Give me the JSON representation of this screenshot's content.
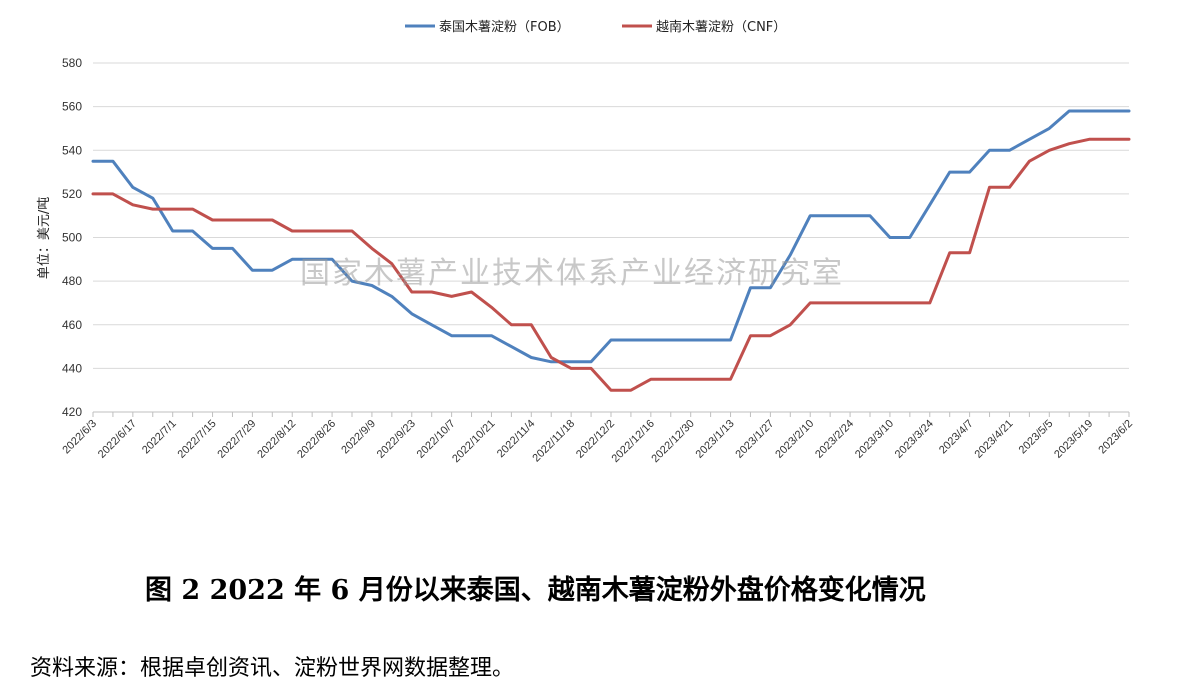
{
  "chart_data": {
    "type": "line",
    "ylabel": "单位：美元/吨",
    "ylim": [
      420,
      580
    ],
    "yticks": [
      420,
      440,
      460,
      480,
      500,
      520,
      540,
      560,
      580
    ],
    "grid": true,
    "legend_position": "top-center",
    "watermark": "国家木薯产业技术体系产业经济研究室",
    "x": [
      "2022/6/3",
      "2022/6/10",
      "2022/6/17",
      "2022/6/24",
      "2022/7/1",
      "2022/7/8",
      "2022/7/15",
      "2022/7/22",
      "2022/7/29",
      "2022/8/5",
      "2022/8/12",
      "2022/8/19",
      "2022/8/26",
      "2022/9/2",
      "2022/9/9",
      "2022/9/16",
      "2022/9/23",
      "2022/9/30",
      "2022/10/7",
      "2022/10/14",
      "2022/10/21",
      "2022/10/28",
      "2022/11/4",
      "2022/11/11",
      "2022/11/18",
      "2022/11/25",
      "2022/12/2",
      "2022/12/9",
      "2022/12/16",
      "2022/12/23",
      "2022/12/30",
      "2023/1/6",
      "2023/1/13",
      "2023/1/20",
      "2023/1/27",
      "2023/2/3",
      "2023/2/10",
      "2023/2/17",
      "2023/2/24",
      "2023/3/3",
      "2023/3/10",
      "2023/3/17",
      "2023/3/24",
      "2023/3/31",
      "2023/4/7",
      "2023/4/14",
      "2023/4/21",
      "2023/4/28",
      "2023/5/5",
      "2023/5/12",
      "2023/5/19",
      "2023/5/26",
      "2023/6/2"
    ],
    "xtick_labels": [
      "2022/6/3",
      "2022/6/17",
      "2022/7/1",
      "2022/7/15",
      "2022/7/29",
      "2022/8/12",
      "2022/8/26",
      "2022/9/9",
      "2022/9/23",
      "2022/10/7",
      "2022/10/21",
      "2022/11/4",
      "2022/11/18",
      "2022/12/2",
      "2022/12/16",
      "2022/12/30",
      "2023/1/13",
      "2023/1/27",
      "2023/2/10",
      "2023/2/24",
      "2023/3/10",
      "2023/3/24",
      "2023/4/7",
      "2023/4/21",
      "2023/5/5",
      "2023/5/19",
      "2023/6/2"
    ],
    "series": [
      {
        "name": "泰国木薯淀粉（FOB）",
        "color": "#4f81bd",
        "values": [
          535,
          535,
          523,
          518,
          503,
          503,
          495,
          495,
          485,
          485,
          490,
          490,
          490,
          480,
          478,
          473,
          465,
          460,
          455,
          455,
          455,
          450,
          445,
          443,
          443,
          443,
          453,
          453,
          453,
          453,
          453,
          453,
          453,
          477,
          477,
          492,
          510,
          510,
          510,
          510,
          500,
          500,
          515,
          530,
          530,
          540,
          540,
          545,
          550,
          558,
          558,
          558,
          558
        ]
      },
      {
        "name": "越南木薯淀粉（CNF）",
        "color": "#c0504d",
        "values": [
          520,
          520,
          515,
          513,
          513,
          513,
          508,
          508,
          508,
          508,
          503,
          503,
          503,
          503,
          495,
          488,
          475,
          475,
          473,
          475,
          468,
          460,
          460,
          445,
          440,
          440,
          430,
          430,
          435,
          435,
          435,
          435,
          435,
          455,
          455,
          460,
          470,
          470,
          470,
          470,
          470,
          470,
          470,
          493,
          493,
          523,
          523,
          535,
          540,
          543,
          545,
          545,
          545
        ]
      }
    ]
  },
  "caption": "图 2   2022 年 6 月份以来泰国、越南木薯淀粉外盘价格变化情况",
  "source": "资料来源：根据卓创资讯、淀粉世界网数据整理。"
}
